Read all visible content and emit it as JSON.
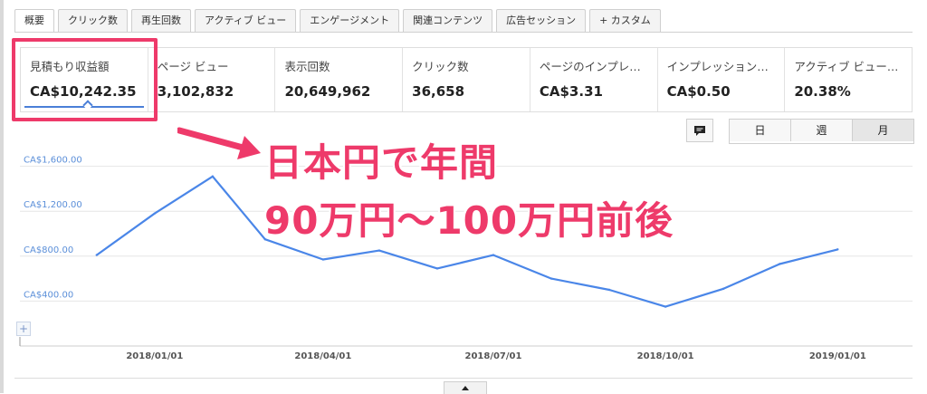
{
  "tabs": [
    {
      "label": "概要"
    },
    {
      "label": "クリック数"
    },
    {
      "label": "再生回数"
    },
    {
      "label": "アクティブ ビュー"
    },
    {
      "label": "エンゲージメント"
    },
    {
      "label": "関連コンテンツ"
    },
    {
      "label": "広告セッション"
    },
    {
      "label": "+ カスタム"
    }
  ],
  "metrics": [
    {
      "label": "見積もり収益額",
      "value": "CA$10,242.35"
    },
    {
      "label": "ページ ビュー",
      "value": "3,102,832"
    },
    {
      "label": "表示回数",
      "value": "20,649,962"
    },
    {
      "label": "クリック数",
      "value": "36,658"
    },
    {
      "label": "ページのインプレッ...",
      "value": "CA$3.31"
    },
    {
      "label": "インプレッション収益",
      "value": "CA$0.50"
    },
    {
      "label": "アクティブ ビュー視...",
      "value": "20.38%"
    }
  ],
  "range_buttons": [
    {
      "label": "日"
    },
    {
      "label": "週"
    },
    {
      "label": "月"
    }
  ],
  "annotation": {
    "line1": "日本円で年間",
    "line2": "90万円〜100万円前後"
  },
  "colors": {
    "accent": "#ee3a6a",
    "series": "#4a86e8",
    "axis_label": "#5b8fd9"
  },
  "icons": {
    "comment": "comment-icon",
    "expand": "plus-icon",
    "collapse": "caret-up-icon"
  },
  "chart_data": {
    "type": "line",
    "title": "",
    "xlabel": "",
    "ylabel": "",
    "y_tick_labels": [
      "CA$400.00",
      "CA$800.00",
      "CA$1,200.00",
      "CA$1,600.00"
    ],
    "y_ticks": [
      400,
      800,
      1200,
      1600
    ],
    "ylim": [
      0,
      1750
    ],
    "x_tick_labels": [
      "2018/01/01",
      "2018/04/01",
      "2018/07/01",
      "2018/10/01",
      "2019/01/01"
    ],
    "x_ticks": [
      "2018-01-01",
      "2018-04-01",
      "2018-07-01",
      "2018-10-01",
      "2019-01-01"
    ],
    "xlim": [
      "2017-10-21",
      "2019-02-10"
    ],
    "grid": true,
    "series": [
      {
        "x": [
          "2017-12-01",
          "2018-01-01",
          "2018-02-01",
          "2018-03-01",
          "2018-04-01",
          "2018-05-01",
          "2018-06-01",
          "2018-07-01",
          "2018-08-01",
          "2018-09-01",
          "2018-10-01",
          "2018-11-01",
          "2018-12-01",
          "2019-01-01"
        ],
        "values": [
          810,
          1180,
          1510,
          950,
          770,
          850,
          690,
          810,
          600,
          500,
          350,
          510,
          730,
          860
        ]
      }
    ]
  }
}
